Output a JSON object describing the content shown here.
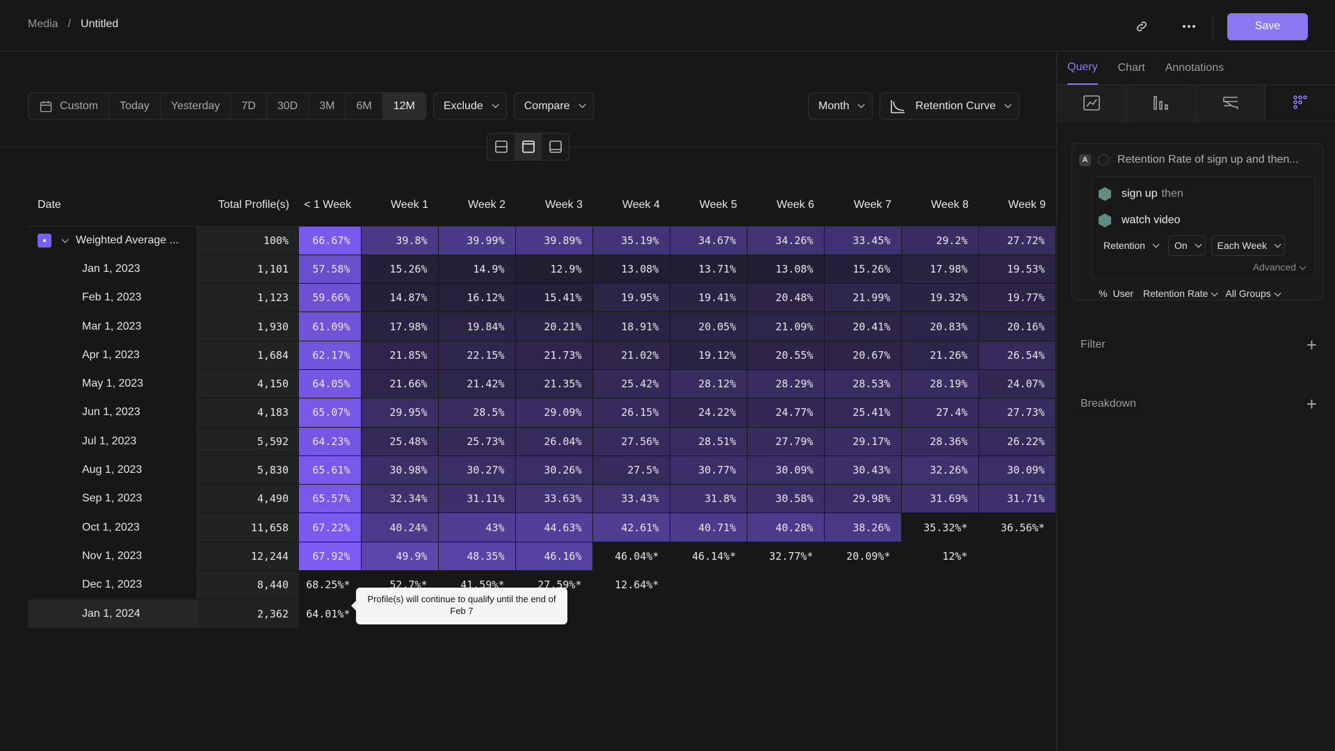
{
  "breadcrumb": {
    "parent": "Media",
    "sep": "/",
    "current": "Untitled"
  },
  "header": {
    "save_label": "Save",
    "link_icon": "link-icon",
    "more_icon": "more-icon"
  },
  "toolbar": {
    "custom_label": "Custom",
    "range_options": [
      "Today",
      "Yesterday",
      "7D",
      "30D",
      "3M",
      "6M",
      "12M"
    ],
    "active_range": "12M",
    "exclude_label": "Exclude",
    "compare_label": "Compare",
    "interval_label": "Month",
    "chart_type_label": "Retention Curve"
  },
  "table": {
    "headers": [
      "Date",
      "Total Profile(s)",
      "< 1 Week",
      "Week 1",
      "Week 2",
      "Week 3",
      "Week 4",
      "Week 5",
      "Week 6",
      "Week 7",
      "Week 8",
      "Week 9"
    ],
    "rows": [
      {
        "date": "Weighted Average ...",
        "total": "100%",
        "cells": [
          "66.67%",
          "39.8%",
          "39.99%",
          "39.89%",
          "35.19%",
          "34.67%",
          "34.26%",
          "33.45%",
          "29.2%",
          "27.72%"
        ]
      },
      {
        "date": "Jan 1, 2023",
        "total": "1,101",
        "cells": [
          "57.58%",
          "15.26%",
          "14.9%",
          "12.9%",
          "13.08%",
          "13.71%",
          "13.08%",
          "15.26%",
          "17.98%",
          "19.53%"
        ]
      },
      {
        "date": "Feb 1, 2023",
        "total": "1,123",
        "cells": [
          "59.66%",
          "14.87%",
          "16.12%",
          "15.41%",
          "19.95%",
          "19.41%",
          "20.48%",
          "21.99%",
          "19.32%",
          "19.77%"
        ]
      },
      {
        "date": "Mar 1, 2023",
        "total": "1,930",
        "cells": [
          "61.09%",
          "17.98%",
          "19.84%",
          "20.21%",
          "18.91%",
          "20.05%",
          "21.09%",
          "20.41%",
          "20.83%",
          "20.16%"
        ]
      },
      {
        "date": "Apr 1, 2023",
        "total": "1,684",
        "cells": [
          "62.17%",
          "21.85%",
          "22.15%",
          "21.73%",
          "21.02%",
          "19.12%",
          "20.55%",
          "20.67%",
          "21.26%",
          "26.54%"
        ]
      },
      {
        "date": "May 1, 2023",
        "total": "4,150",
        "cells": [
          "64.05%",
          "21.66%",
          "21.42%",
          "21.35%",
          "25.42%",
          "28.12%",
          "28.29%",
          "28.53%",
          "28.19%",
          "24.07%"
        ]
      },
      {
        "date": "Jun 1, 2023",
        "total": "4,183",
        "cells": [
          "65.07%",
          "29.95%",
          "28.5%",
          "29.09%",
          "26.15%",
          "24.22%",
          "24.77%",
          "25.41%",
          "27.4%",
          "27.73%"
        ]
      },
      {
        "date": "Jul 1, 2023",
        "total": "5,592",
        "cells": [
          "64.23%",
          "25.48%",
          "25.73%",
          "26.04%",
          "27.56%",
          "28.51%",
          "27.79%",
          "29.17%",
          "28.36%",
          "26.22%"
        ]
      },
      {
        "date": "Aug 1, 2023",
        "total": "5,830",
        "cells": [
          "65.61%",
          "30.98%",
          "30.27%",
          "30.26%",
          "27.5%",
          "30.77%",
          "30.09%",
          "30.43%",
          "32.26%",
          "30.09%"
        ]
      },
      {
        "date": "Sep 1, 2023",
        "total": "4,490",
        "cells": [
          "65.57%",
          "32.34%",
          "31.11%",
          "33.63%",
          "33.43%",
          "31.8%",
          "30.58%",
          "29.98%",
          "31.69%",
          "31.71%"
        ]
      },
      {
        "date": "Oct 1, 2023",
        "total": "11,658",
        "cells": [
          "67.22%",
          "40.24%",
          "43%",
          "44.63%",
          "42.61%",
          "40.71%",
          "40.28%",
          "38.26%",
          "35.32%*",
          "36.56%*"
        ]
      },
      {
        "date": "Nov 1, 2023",
        "total": "12,244",
        "cells": [
          "67.92%",
          "49.9%",
          "48.35%",
          "46.16%",
          "46.04%*",
          "46.14%*",
          "32.77%*",
          "20.09%*",
          "12%*",
          ""
        ]
      },
      {
        "date": "Dec 1, 2023",
        "total": "8,440",
        "cells": [
          "68.25%*",
          "52.7%*",
          "41.59%*",
          "27.59%*",
          "12.64%*",
          "",
          "",
          "",
          "",
          ""
        ]
      },
      {
        "date": "Jan 1, 2024",
        "total": "2,362",
        "cells": [
          "64.01%*",
          "",
          "",
          "",
          "",
          "",
          "",
          "",
          "",
          ""
        ]
      }
    ]
  },
  "tooltip": {
    "text": "Profile(s) will continue to qualify until the end of Feb 7"
  },
  "panel": {
    "tabs": [
      "Query",
      "Chart",
      "Annotations"
    ],
    "active_tab": "Query",
    "viz_icons": [
      "line-chart-icon",
      "bar-chart-icon",
      "flow-chart-icon",
      "grid-dots-icon"
    ],
    "query": {
      "badge": "A",
      "title": "Retention Rate of sign up and then...",
      "event1": "sign up",
      "then": "then",
      "event2": "watch video",
      "retention_label": "Retention",
      "on_label": "On",
      "interval_label": "Each Week",
      "advanced_label": "Advanced",
      "pct_symbol": "%",
      "user_label": "User",
      "measure_label": "Retention Rate",
      "groups_label": "All Groups"
    },
    "filter_label": "Filter",
    "breakdown_label": "Breakdown"
  },
  "colors": {
    "accent": "#8a79f0",
    "cell_high": "#7c5cf2",
    "cell_low": "#201a2c"
  }
}
